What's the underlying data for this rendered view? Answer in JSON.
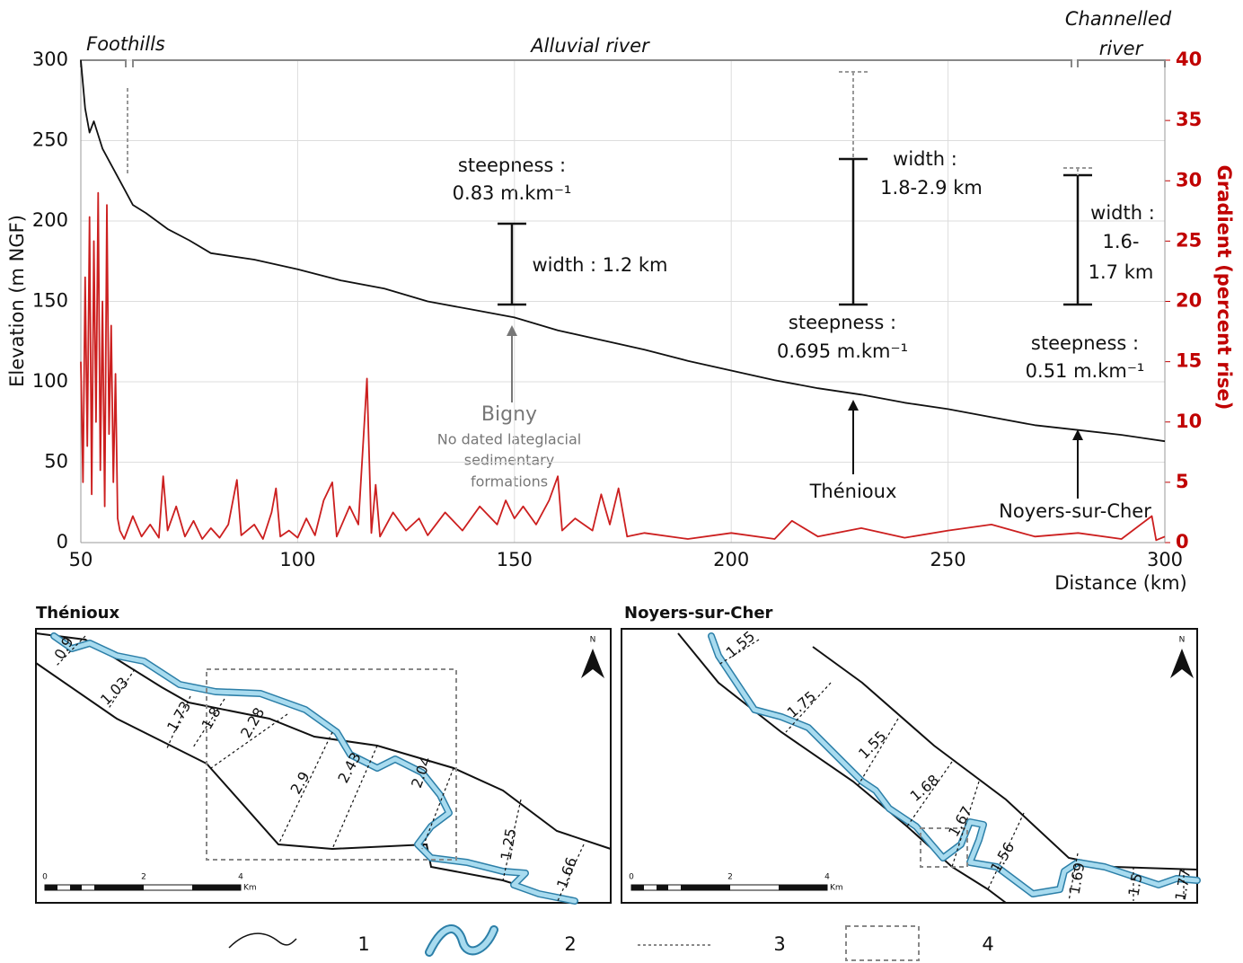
{
  "chart_data": {
    "type": "line",
    "x_label": "Distance (km)",
    "y_label": "Elevation (m NGF)",
    "y2_label": "Gradient (percent rise)",
    "xlim": [
      50,
      300
    ],
    "xticks": [
      50,
      100,
      150,
      200,
      250,
      300
    ],
    "ylim": [
      0,
      300
    ],
    "yticks": [
      0,
      50,
      100,
      150,
      200,
      250,
      300
    ],
    "y2lim": [
      0,
      40
    ],
    "y2ticks": [
      0,
      5,
      10,
      15,
      20,
      25,
      30,
      35,
      40
    ],
    "grid": true,
    "series": [
      {
        "name": "Elevation",
        "color": "#111111",
        "x": [
          50,
          51,
          52,
          53,
          55,
          57,
          60,
          62,
          65,
          70,
          75,
          80,
          90,
          100,
          110,
          120,
          130,
          140,
          150,
          160,
          170,
          180,
          190,
          200,
          210,
          220,
          230,
          240,
          250,
          260,
          270,
          280,
          290,
          300
        ],
        "values": [
          300,
          270,
          255,
          262,
          245,
          235,
          220,
          210,
          205,
          195,
          188,
          180,
          176,
          170,
          163,
          158,
          150,
          145,
          140,
          132,
          126,
          120,
          113,
          107,
          101,
          96,
          92,
          87,
          83,
          78,
          73,
          70,
          67,
          63
        ]
      },
      {
        "name": "Gradient",
        "color": "#cc1f1f",
        "axis": "y2",
        "x": [
          50,
          50.5,
          51,
          51.5,
          52,
          52.5,
          53,
          53.5,
          54,
          54.5,
          55,
          55.5,
          56,
          56.5,
          57,
          57.5,
          58,
          58.5,
          59,
          60,
          62,
          64,
          66,
          68,
          69,
          70,
          72,
          74,
          76,
          78,
          80,
          82,
          84,
          86,
          87,
          90,
          92,
          94,
          95,
          96,
          98,
          100,
          102,
          104,
          106,
          108,
          109,
          112,
          114,
          116,
          117,
          118,
          119,
          122,
          125,
          128,
          130,
          134,
          138,
          142,
          146,
          148,
          150,
          152,
          155,
          158,
          160,
          161,
          164,
          168,
          170,
          172,
          174,
          176,
          180,
          190,
          200,
          210,
          214,
          220,
          230,
          240,
          250,
          260,
          270,
          280,
          290,
          297,
          298,
          300
        ],
        "values": [
          15,
          5,
          22,
          8,
          27,
          4,
          25,
          10,
          29,
          6,
          20,
          3,
          28,
          9,
          18,
          5,
          14,
          2,
          1,
          0.3,
          2.2,
          0.5,
          1.5,
          0.4,
          5.5,
          1,
          3,
          0.5,
          1.8,
          0.3,
          1.2,
          0.4,
          1.5,
          5.2,
          0.6,
          1.5,
          0.3,
          2.5,
          4.5,
          0.5,
          1,
          0.4,
          2,
          0.6,
          3.5,
          5,
          0.5,
          3,
          1.5,
          13.6,
          0.8,
          4.8,
          0.5,
          2.5,
          1,
          2,
          0.6,
          2.5,
          1,
          3,
          1.5,
          3.5,
          2,
          3,
          1.5,
          3.5,
          5.5,
          1,
          2,
          1,
          4,
          1.5,
          4.5,
          0.5,
          0.8,
          0.3,
          0.8,
          0.3,
          1.8,
          0.5,
          1.2,
          0.4,
          1,
          1.5,
          0.5,
          0.8,
          0.3,
          2.2,
          0.2,
          0.5
        ]
      }
    ],
    "zones": [
      "Foothills",
      "Alluvial river",
      [
        "Channelled",
        "river"
      ]
    ],
    "annotations": {
      "a150": {
        "steepness": [
          "steepness :",
          "0.83 m.km⁻¹"
        ],
        "width": "width : 1.2 km"
      },
      "a225": {
        "steepness": [
          "steepness :",
          "0.695 m.km⁻¹"
        ],
        "width": [
          "width :",
          "1.8-2.9 km"
        ]
      },
      "a275": {
        "steepness": [
          "steepness :",
          "0.51 m.km⁻¹"
        ],
        "width": [
          "width :",
          "1.6-",
          "1.7 km"
        ]
      },
      "sites": {
        "bigny": "Bigny",
        "bigny_note": [
          "No dated lateglacial",
          "sedimentary",
          "formations"
        ],
        "thenioux": "Thénioux",
        "noyers": "Noyers-sur-Cher"
      }
    }
  },
  "maps": [
    {
      "title": "Thénioux",
      "labels": [
        "0.9",
        "1.03",
        "1.73",
        "1.8",
        "2.28",
        "2.9",
        "2.43",
        "2.04",
        "1.25",
        "1.66"
      ],
      "scale": [
        "0",
        "2",
        "4"
      ],
      "unit": "Km",
      "north": "N"
    },
    {
      "title": "Noyers-sur-Cher",
      "labels": [
        "1.55",
        "1.75",
        "1.55",
        "1.68",
        "1.67",
        "1.56",
        "1.69",
        "1.5",
        "1.77"
      ],
      "scale": [
        "0",
        "2",
        "4"
      ],
      "unit": "Km",
      "north": "N"
    }
  ],
  "legend": [
    "1",
    "2",
    "3",
    "4"
  ]
}
